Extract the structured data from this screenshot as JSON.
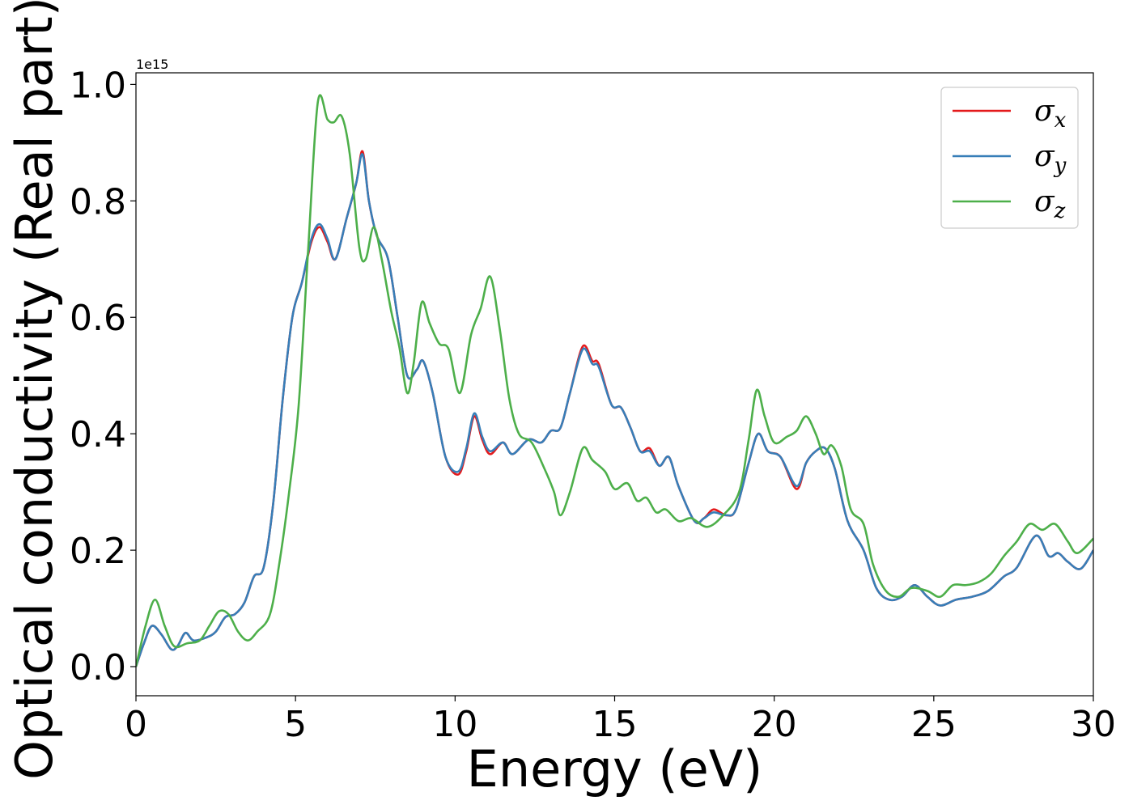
{
  "chart_data": {
    "type": "line",
    "xlabel": "Energy (eV)",
    "ylabel": "Optical conductivity (Real part)",
    "y_offset_label": "1e15",
    "xlim": [
      0,
      30
    ],
    "ylim": [
      -0.05,
      1.02
    ],
    "xticks": [
      0,
      5,
      10,
      15,
      20,
      25,
      30
    ],
    "xtick_labels": [
      "0",
      "5",
      "10",
      "15",
      "20",
      "25",
      "30"
    ],
    "yticks": [
      0.0,
      0.2,
      0.4,
      0.6,
      0.8,
      1.0
    ],
    "ytick_labels": [
      "0.0",
      "0.2",
      "0.4",
      "0.6",
      "0.8",
      "1.0"
    ],
    "grid": false,
    "legend_position": "top-right",
    "series": [
      {
        "name": "σx",
        "legend_symbol": "σ",
        "legend_subscript": "x",
        "color": "#e41a1c",
        "points": [
          [
            0,
            0.0
          ],
          [
            0.25,
            0.04
          ],
          [
            0.5,
            0.07
          ],
          [
            0.8,
            0.055
          ],
          [
            1.1,
            0.03
          ],
          [
            1.3,
            0.035
          ],
          [
            1.55,
            0.058
          ],
          [
            1.8,
            0.045
          ],
          [
            2.2,
            0.05
          ],
          [
            2.5,
            0.06
          ],
          [
            2.8,
            0.085
          ],
          [
            3.1,
            0.09
          ],
          [
            3.4,
            0.11
          ],
          [
            3.7,
            0.155
          ],
          [
            4.0,
            0.17
          ],
          [
            4.3,
            0.28
          ],
          [
            4.6,
            0.46
          ],
          [
            4.9,
            0.6
          ],
          [
            5.2,
            0.66
          ],
          [
            5.5,
            0.73
          ],
          [
            5.75,
            0.755
          ],
          [
            6.0,
            0.73
          ],
          [
            6.25,
            0.7
          ],
          [
            6.6,
            0.77
          ],
          [
            6.9,
            0.83
          ],
          [
            7.1,
            0.885
          ],
          [
            7.3,
            0.8
          ],
          [
            7.55,
            0.74
          ],
          [
            7.9,
            0.7
          ],
          [
            8.2,
            0.6
          ],
          [
            8.5,
            0.5
          ],
          [
            8.8,
            0.51
          ],
          [
            9.0,
            0.525
          ],
          [
            9.3,
            0.47
          ],
          [
            9.7,
            0.36
          ],
          [
            10.1,
            0.33
          ],
          [
            10.35,
            0.37
          ],
          [
            10.6,
            0.43
          ],
          [
            10.85,
            0.39
          ],
          [
            11.1,
            0.365
          ],
          [
            11.5,
            0.385
          ],
          [
            11.8,
            0.365
          ],
          [
            12.3,
            0.39
          ],
          [
            12.7,
            0.385
          ],
          [
            13.0,
            0.405
          ],
          [
            13.3,
            0.41
          ],
          [
            13.6,
            0.47
          ],
          [
            14.0,
            0.55
          ],
          [
            14.3,
            0.525
          ],
          [
            14.5,
            0.52
          ],
          [
            14.9,
            0.45
          ],
          [
            15.2,
            0.445
          ],
          [
            15.5,
            0.41
          ],
          [
            15.8,
            0.37
          ],
          [
            16.1,
            0.375
          ],
          [
            16.4,
            0.345
          ],
          [
            16.7,
            0.36
          ],
          [
            17.0,
            0.31
          ],
          [
            17.5,
            0.25
          ],
          [
            17.8,
            0.255
          ],
          [
            18.1,
            0.27
          ],
          [
            18.5,
            0.26
          ],
          [
            18.8,
            0.27
          ],
          [
            19.2,
            0.35
          ],
          [
            19.5,
            0.4
          ],
          [
            19.8,
            0.37
          ],
          [
            20.2,
            0.36
          ],
          [
            20.7,
            0.305
          ],
          [
            21.0,
            0.35
          ],
          [
            21.3,
            0.37
          ],
          [
            21.6,
            0.375
          ],
          [
            21.9,
            0.34
          ],
          [
            22.3,
            0.25
          ],
          [
            22.8,
            0.2
          ],
          [
            23.2,
            0.135
          ],
          [
            23.6,
            0.115
          ],
          [
            24.0,
            0.12
          ],
          [
            24.4,
            0.14
          ],
          [
            24.8,
            0.12
          ],
          [
            25.2,
            0.105
          ],
          [
            25.7,
            0.115
          ],
          [
            26.2,
            0.12
          ],
          [
            26.7,
            0.13
          ],
          [
            27.2,
            0.155
          ],
          [
            27.6,
            0.17
          ],
          [
            28.2,
            0.225
          ],
          [
            28.6,
            0.19
          ],
          [
            28.9,
            0.195
          ],
          [
            29.2,
            0.18
          ],
          [
            29.6,
            0.168
          ],
          [
            30.0,
            0.2
          ]
        ]
      },
      {
        "name": "σy",
        "legend_symbol": "σ",
        "legend_subscript": "y",
        "color": "#377eb8",
        "points": [
          [
            0,
            0.0
          ],
          [
            0.25,
            0.04
          ],
          [
            0.5,
            0.07
          ],
          [
            0.8,
            0.055
          ],
          [
            1.1,
            0.03
          ],
          [
            1.3,
            0.035
          ],
          [
            1.55,
            0.058
          ],
          [
            1.8,
            0.045
          ],
          [
            2.2,
            0.05
          ],
          [
            2.5,
            0.06
          ],
          [
            2.8,
            0.085
          ],
          [
            3.1,
            0.09
          ],
          [
            3.4,
            0.11
          ],
          [
            3.7,
            0.155
          ],
          [
            4.0,
            0.17
          ],
          [
            4.3,
            0.28
          ],
          [
            4.6,
            0.46
          ],
          [
            4.9,
            0.6
          ],
          [
            5.2,
            0.66
          ],
          [
            5.5,
            0.735
          ],
          [
            5.75,
            0.76
          ],
          [
            6.0,
            0.735
          ],
          [
            6.25,
            0.7
          ],
          [
            6.6,
            0.77
          ],
          [
            6.9,
            0.83
          ],
          [
            7.1,
            0.88
          ],
          [
            7.3,
            0.8
          ],
          [
            7.55,
            0.74
          ],
          [
            7.9,
            0.7
          ],
          [
            8.2,
            0.6
          ],
          [
            8.5,
            0.5
          ],
          [
            8.8,
            0.51
          ],
          [
            9.0,
            0.525
          ],
          [
            9.3,
            0.47
          ],
          [
            9.7,
            0.36
          ],
          [
            10.1,
            0.335
          ],
          [
            10.35,
            0.375
          ],
          [
            10.6,
            0.435
          ],
          [
            10.85,
            0.395
          ],
          [
            11.1,
            0.37
          ],
          [
            11.5,
            0.385
          ],
          [
            11.8,
            0.365
          ],
          [
            12.3,
            0.39
          ],
          [
            12.7,
            0.385
          ],
          [
            13.0,
            0.405
          ],
          [
            13.3,
            0.41
          ],
          [
            13.6,
            0.47
          ],
          [
            14.0,
            0.545
          ],
          [
            14.3,
            0.52
          ],
          [
            14.5,
            0.515
          ],
          [
            14.9,
            0.45
          ],
          [
            15.2,
            0.445
          ],
          [
            15.5,
            0.41
          ],
          [
            15.8,
            0.37
          ],
          [
            16.1,
            0.37
          ],
          [
            16.4,
            0.345
          ],
          [
            16.7,
            0.36
          ],
          [
            17.0,
            0.31
          ],
          [
            17.5,
            0.25
          ],
          [
            17.8,
            0.255
          ],
          [
            18.1,
            0.265
          ],
          [
            18.5,
            0.26
          ],
          [
            18.8,
            0.27
          ],
          [
            19.2,
            0.35
          ],
          [
            19.5,
            0.4
          ],
          [
            19.8,
            0.37
          ],
          [
            20.2,
            0.36
          ],
          [
            20.7,
            0.31
          ],
          [
            21.0,
            0.35
          ],
          [
            21.3,
            0.37
          ],
          [
            21.6,
            0.375
          ],
          [
            21.9,
            0.34
          ],
          [
            22.3,
            0.25
          ],
          [
            22.8,
            0.2
          ],
          [
            23.2,
            0.135
          ],
          [
            23.6,
            0.115
          ],
          [
            24.0,
            0.12
          ],
          [
            24.4,
            0.14
          ],
          [
            24.8,
            0.12
          ],
          [
            25.2,
            0.105
          ],
          [
            25.7,
            0.115
          ],
          [
            26.2,
            0.12
          ],
          [
            26.7,
            0.13
          ],
          [
            27.2,
            0.155
          ],
          [
            27.6,
            0.17
          ],
          [
            28.2,
            0.225
          ],
          [
            28.6,
            0.19
          ],
          [
            28.9,
            0.195
          ],
          [
            29.2,
            0.18
          ],
          [
            29.6,
            0.168
          ],
          [
            30.0,
            0.2
          ]
        ]
      },
      {
        "name": "σz",
        "legend_symbol": "σ",
        "legend_subscript": "z",
        "color": "#4daf4a",
        "points": [
          [
            0,
            0.0
          ],
          [
            0.3,
            0.07
          ],
          [
            0.6,
            0.115
          ],
          [
            0.9,
            0.07
          ],
          [
            1.2,
            0.035
          ],
          [
            1.6,
            0.04
          ],
          [
            2.0,
            0.045
          ],
          [
            2.3,
            0.07
          ],
          [
            2.6,
            0.095
          ],
          [
            2.9,
            0.09
          ],
          [
            3.2,
            0.06
          ],
          [
            3.5,
            0.045
          ],
          [
            3.8,
            0.06
          ],
          [
            4.2,
            0.09
          ],
          [
            4.5,
            0.18
          ],
          [
            4.8,
            0.3
          ],
          [
            5.1,
            0.45
          ],
          [
            5.4,
            0.72
          ],
          [
            5.7,
            0.97
          ],
          [
            6.0,
            0.94
          ],
          [
            6.2,
            0.935
          ],
          [
            6.45,
            0.945
          ],
          [
            6.7,
            0.88
          ],
          [
            7.0,
            0.72
          ],
          [
            7.2,
            0.7
          ],
          [
            7.45,
            0.755
          ],
          [
            7.7,
            0.7
          ],
          [
            8.0,
            0.61
          ],
          [
            8.25,
            0.55
          ],
          [
            8.5,
            0.47
          ],
          [
            8.7,
            0.52
          ],
          [
            8.95,
            0.625
          ],
          [
            9.2,
            0.59
          ],
          [
            9.5,
            0.555
          ],
          [
            9.8,
            0.545
          ],
          [
            10.15,
            0.47
          ],
          [
            10.5,
            0.57
          ],
          [
            10.8,
            0.615
          ],
          [
            11.1,
            0.67
          ],
          [
            11.4,
            0.58
          ],
          [
            11.7,
            0.46
          ],
          [
            12.0,
            0.4
          ],
          [
            12.4,
            0.385
          ],
          [
            12.8,
            0.34
          ],
          [
            13.1,
            0.3
          ],
          [
            13.3,
            0.26
          ],
          [
            13.6,
            0.3
          ],
          [
            14.0,
            0.375
          ],
          [
            14.3,
            0.355
          ],
          [
            14.7,
            0.335
          ],
          [
            15.0,
            0.305
          ],
          [
            15.4,
            0.315
          ],
          [
            15.7,
            0.285
          ],
          [
            16.0,
            0.29
          ],
          [
            16.3,
            0.265
          ],
          [
            16.6,
            0.27
          ],
          [
            17.0,
            0.25
          ],
          [
            17.4,
            0.255
          ],
          [
            17.9,
            0.24
          ],
          [
            18.4,
            0.26
          ],
          [
            18.9,
            0.3
          ],
          [
            19.2,
            0.39
          ],
          [
            19.45,
            0.475
          ],
          [
            19.7,
            0.43
          ],
          [
            20.0,
            0.385
          ],
          [
            20.4,
            0.395
          ],
          [
            20.7,
            0.405
          ],
          [
            21.0,
            0.43
          ],
          [
            21.3,
            0.4
          ],
          [
            21.55,
            0.365
          ],
          [
            21.8,
            0.38
          ],
          [
            22.1,
            0.345
          ],
          [
            22.4,
            0.27
          ],
          [
            22.8,
            0.245
          ],
          [
            23.1,
            0.175
          ],
          [
            23.5,
            0.13
          ],
          [
            23.9,
            0.12
          ],
          [
            24.3,
            0.135
          ],
          [
            24.8,
            0.13
          ],
          [
            25.2,
            0.12
          ],
          [
            25.6,
            0.14
          ],
          [
            26.0,
            0.14
          ],
          [
            26.4,
            0.145
          ],
          [
            26.8,
            0.16
          ],
          [
            27.2,
            0.19
          ],
          [
            27.6,
            0.215
          ],
          [
            28.0,
            0.245
          ],
          [
            28.4,
            0.235
          ],
          [
            28.8,
            0.245
          ],
          [
            29.2,
            0.215
          ],
          [
            29.5,
            0.195
          ],
          [
            30.0,
            0.22
          ]
        ]
      }
    ]
  }
}
